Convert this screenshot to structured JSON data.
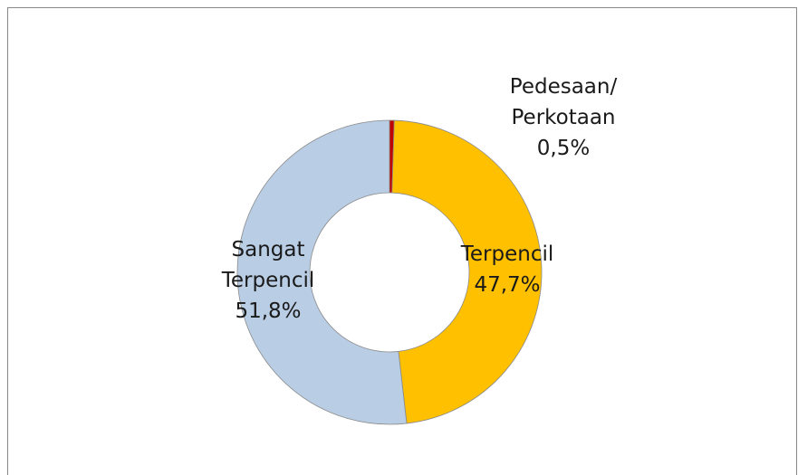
{
  "chart_data": {
    "type": "donut",
    "categories": [
      "Pedesaan/\nPerkotaan",
      "Terpencil",
      "Sangat\nTerpencil"
    ],
    "values": [
      0.5,
      47.7,
      51.8
    ],
    "value_labels": [
      "0,5%",
      "47,7%",
      "51,8%"
    ],
    "colors": [
      "#c00000",
      "#ffc000",
      "#b9cde5"
    ]
  }
}
